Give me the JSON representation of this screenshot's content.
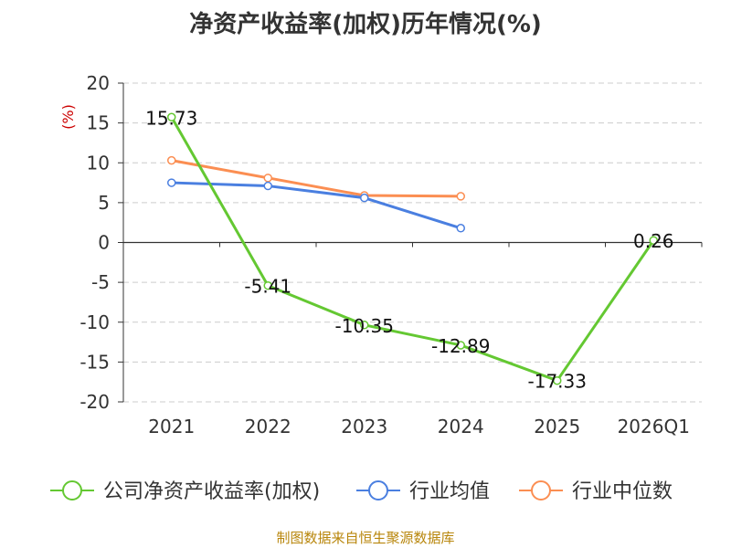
{
  "chart_data": {
    "type": "line",
    "title": "净资产收益率(加权)历年情况(%)",
    "ylabel": "(%)",
    "xlabel": "",
    "categories": [
      "2021",
      "2022",
      "2023",
      "2024",
      "2025",
      "2026Q1"
    ],
    "ylim": [
      -20,
      20
    ],
    "yticks": [
      20,
      15,
      10,
      5,
      0,
      -5,
      -10,
      -15,
      -20
    ],
    "grid": true,
    "legend_position": "bottom",
    "series": [
      {
        "name": "公司净资产收益率(加权)",
        "color": "#64c832",
        "values": [
          15.73,
          -5.41,
          -10.35,
          -12.89,
          -17.33,
          0.26
        ],
        "labels": [
          "15.73",
          "-5.41",
          "-10.35",
          "-12.89",
          "-17.33",
          "0.26"
        ]
      },
      {
        "name": "行业均值",
        "color": "#4a7fe0",
        "values": [
          7.5,
          7.1,
          5.6,
          1.8,
          null,
          null
        ]
      },
      {
        "name": "行业中位数",
        "color": "#fb8e52",
        "values": [
          10.3,
          8.1,
          5.9,
          5.8,
          null,
          null
        ]
      }
    ]
  },
  "footer": {
    "source": "制图数据来自恒生聚源数据库"
  }
}
